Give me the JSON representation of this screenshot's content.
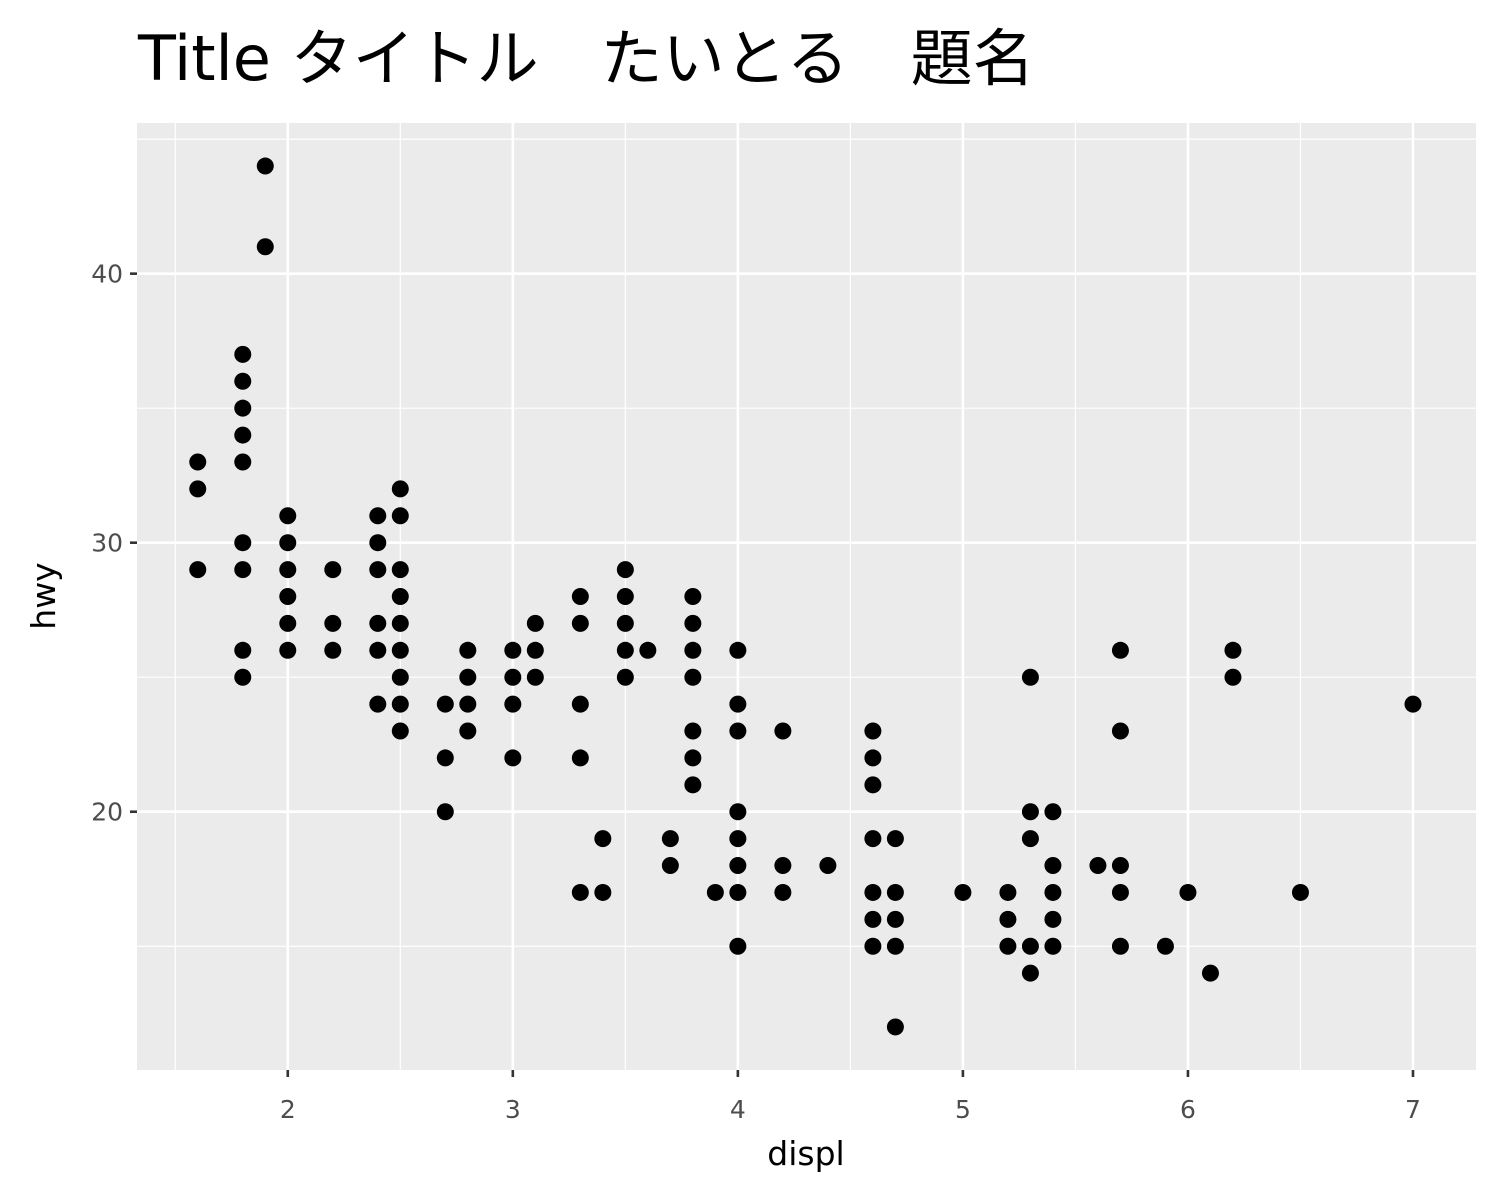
{
  "chart_data": {
    "type": "scatter",
    "title": "Title タイトル　たいとる　題名",
    "x_label": "displ",
    "y_label": "hwy",
    "xlim": [
      1.33,
      7.28
    ],
    "ylim": [
      10.4,
      45.6
    ],
    "xticks": [
      2,
      3,
      4,
      5,
      6,
      7
    ],
    "yticks": [
      20,
      30,
      40
    ],
    "x_minor_breaks": [
      1.5,
      2.5,
      3.5,
      4.5,
      5.5,
      6.5
    ],
    "y_minor_breaks": [
      15,
      25,
      35,
      45
    ],
    "grid": true,
    "color": "#000000",
    "x": [
      1.6,
      1.6,
      1.6,
      1.8,
      1.8,
      1.8,
      1.8,
      1.8,
      1.8,
      1.8,
      1.8,
      1.8,
      1.9,
      1.9,
      2.0,
      2.0,
      2.0,
      2.0,
      2.0,
      2.0,
      2.2,
      2.2,
      2.2,
      2.4,
      2.4,
      2.4,
      2.4,
      2.4,
      2.4,
      2.5,
      2.5,
      2.5,
      2.5,
      2.5,
      2.5,
      2.5,
      2.5,
      2.5,
      2.7,
      2.7,
      2.7,
      2.8,
      2.8,
      2.8,
      2.8,
      3.0,
      3.0,
      3.0,
      3.0,
      3.1,
      3.1,
      3.1,
      3.3,
      3.3,
      3.3,
      3.3,
      3.3,
      3.4,
      3.4,
      3.5,
      3.5,
      3.5,
      3.5,
      3.5,
      3.6,
      3.7,
      3.7,
      3.8,
      3.8,
      3.8,
      3.8,
      3.8,
      3.8,
      3.8,
      3.9,
      4.0,
      4.0,
      4.0,
      4.0,
      4.0,
      4.0,
      4.0,
      4.0,
      4.2,
      4.2,
      4.2,
      4.4,
      4.6,
      4.6,
      4.6,
      4.6,
      4.6,
      4.6,
      4.6,
      4.7,
      4.7,
      4.7,
      4.7,
      4.7,
      5.0,
      5.2,
      5.2,
      5.2,
      5.3,
      5.3,
      5.3,
      5.3,
      5.3,
      5.4,
      5.4,
      5.4,
      5.4,
      5.4,
      5.6,
      5.7,
      5.7,
      5.7,
      5.7,
      5.7,
      5.9,
      6.0,
      6.1,
      6.2,
      6.2,
      6.5,
      7.0
    ],
    "y": [
      33,
      32,
      29,
      37,
      36,
      35,
      34,
      33,
      30,
      29,
      26,
      25,
      44,
      41,
      31,
      30,
      29,
      28,
      27,
      26,
      29,
      27,
      26,
      31,
      30,
      29,
      27,
      26,
      24,
      32,
      31,
      29,
      28,
      27,
      26,
      25,
      24,
      23,
      24,
      22,
      20,
      26,
      25,
      24,
      23,
      26,
      25,
      24,
      22,
      27,
      26,
      25,
      28,
      27,
      24,
      22,
      17,
      19,
      17,
      29,
      28,
      27,
      26,
      25,
      26,
      19,
      18,
      28,
      27,
      26,
      25,
      23,
      22,
      21,
      17,
      26,
      24,
      23,
      20,
      19,
      18,
      17,
      15,
      23,
      18,
      17,
      18,
      23,
      22,
      21,
      19,
      17,
      16,
      15,
      19,
      17,
      16,
      15,
      12,
      17,
      17,
      16,
      15,
      25,
      20,
      19,
      15,
      14,
      20,
      18,
      17,
      16,
      15,
      18,
      26,
      23,
      18,
      17,
      15,
      15,
      17,
      14,
      26,
      25,
      17,
      24
    ]
  }
}
